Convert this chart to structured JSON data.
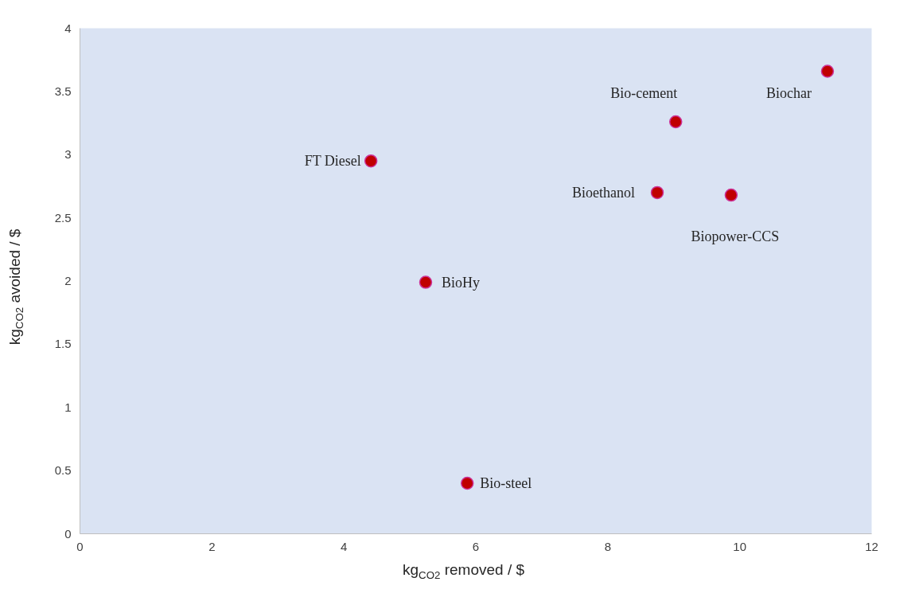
{
  "chart_data": {
    "type": "scatter",
    "xlabel": "kg$_{CO2}$ removed / $",
    "ylabel": "kg$_{CO2}$ avoided / $",
    "series": [
      {
        "color": "#c00000",
        "x": [
          4.41,
          5.24,
          5.87,
          8.75,
          9.03,
          9.87,
          11.33
        ],
        "values": [
          2.95,
          1.99,
          0.4,
          2.7,
          3.26,
          2.68,
          3.66
        ]
      }
    ],
    "annotations": [
      {
        "text": "FT Diesel",
        "x": 4.41,
        "y": 2.95
      },
      {
        "text": "BioHy",
        "x": 5.24,
        "y": 1.99
      },
      {
        "text": "Bio-steel",
        "x": 5.87,
        "y": 0.4
      },
      {
        "text": "Bioethanol",
        "x": 8.75,
        "y": 2.7
      },
      {
        "text": "Bio-cement",
        "x": 9.03,
        "y": 3.26
      },
      {
        "text": "Biopower-CCS",
        "x": 9.87,
        "y": 2.68
      },
      {
        "text": "Biochar",
        "x": 11.33,
        "y": 3.66
      }
    ],
    "xlim": [
      0,
      12
    ],
    "xticks": [
      0,
      2,
      4,
      6,
      8,
      10,
      12
    ],
    "ylim": [
      0,
      4
    ],
    "yticks": [
      0,
      0.5,
      1,
      1.5,
      2,
      2.5,
      3,
      3.5,
      4
    ],
    "grid": false,
    "marker": "circle"
  }
}
